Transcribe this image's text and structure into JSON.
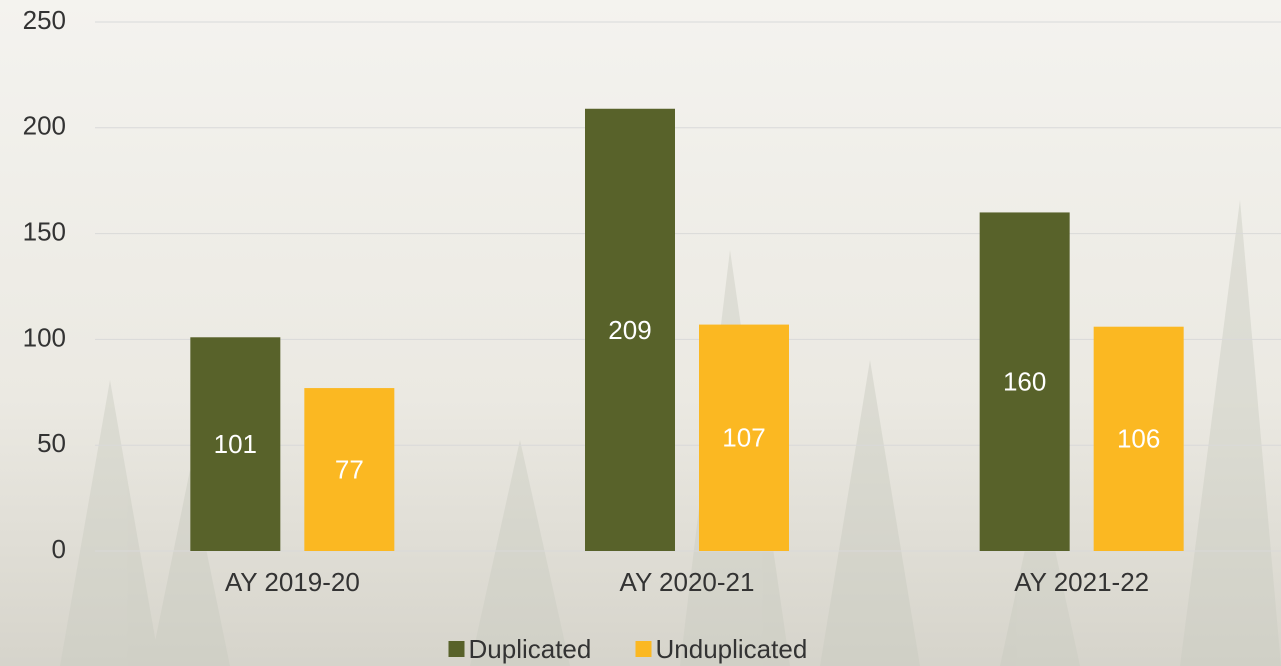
{
  "chart_data": {
    "type": "bar",
    "categories": [
      "AY 2019-20",
      "AY 2020-21",
      "AY 2021-22"
    ],
    "series": [
      {
        "name": "Duplicated",
        "color": "#58622a",
        "values": [
          101,
          209,
          160
        ]
      },
      {
        "name": "Unduplicated",
        "color": "#fbb822",
        "values": [
          77,
          107,
          106
        ]
      }
    ],
    "ylim": [
      0,
      250
    ],
    "yticks": [
      0,
      50,
      100,
      150,
      200,
      250
    ],
    "grid": true,
    "legend": "bottom"
  }
}
